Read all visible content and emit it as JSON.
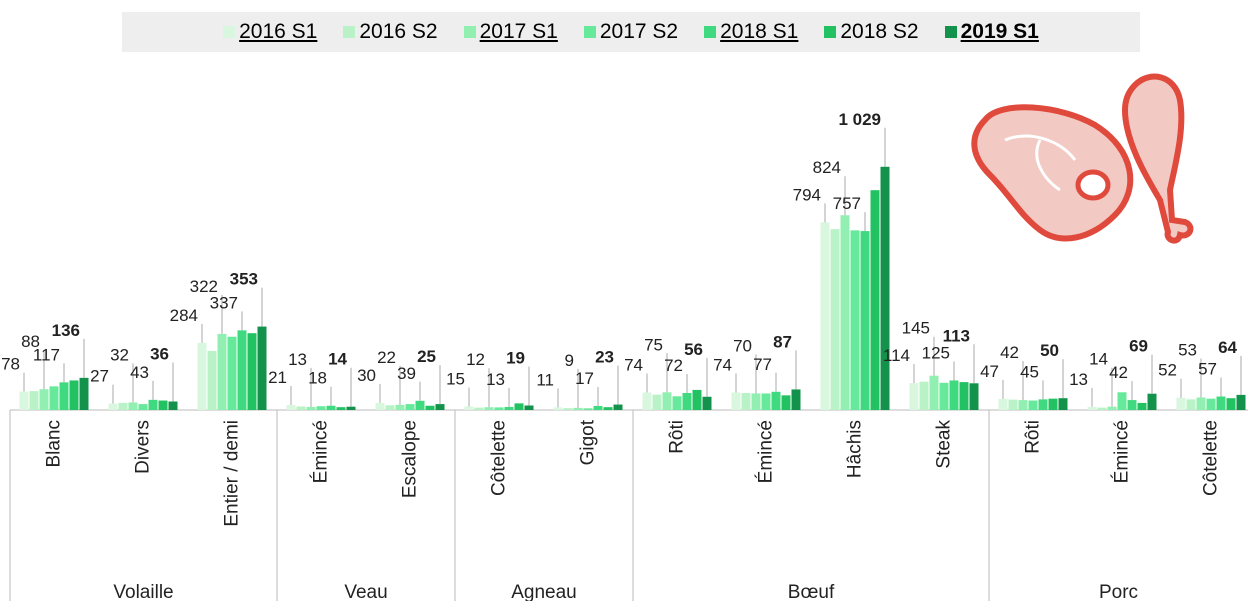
{
  "chart_data": {
    "type": "bar",
    "groups": [
      {
        "name": "Volaille",
        "categories": [
          "Blanc",
          "Divers",
          "Entier / demi"
        ]
      },
      {
        "name": "Veau",
        "categories": [
          "Émincé",
          "Escalope"
        ]
      },
      {
        "name": "Agneau",
        "categories": [
          "Côtelette",
          "Gigot"
        ]
      },
      {
        "name": "Bœuf",
        "categories": [
          "Rôti",
          "Émincé",
          "Hâchis",
          "Steak"
        ]
      },
      {
        "name": "Porc",
        "categories": [
          "Rôti",
          "Émincé",
          "Côtelette"
        ]
      }
    ],
    "series": [
      {
        "name": "2016 S1",
        "color": "#d9f7de",
        "values": [
          78,
          27,
          284,
          21,
          30,
          15,
          11,
          74,
          74,
          794,
          114,
          47,
          13,
          52
        ]
      },
      {
        "name": "2016 S2",
        "color": "#b8f2c6",
        "values": [
          80,
          30,
          250,
          15,
          20,
          10,
          8,
          65,
          72,
          765,
          120,
          44,
          10,
          45
        ]
      },
      {
        "name": "2017 S1",
        "color": "#92efb2",
        "values": [
          88,
          32,
          322,
          13,
          22,
          12,
          9,
          75,
          70,
          824,
          145,
          42,
          14,
          53
        ]
      },
      {
        "name": "2017 S2",
        "color": "#66e99a",
        "values": [
          100,
          25,
          310,
          16,
          25,
          11,
          7,
          58,
          70,
          760,
          115,
          40,
          75,
          48
        ]
      },
      {
        "name": "2018 S1",
        "color": "#3fd97f",
        "values": [
          117,
          43,
          337,
          18,
          39,
          13,
          17,
          72,
          77,
          757,
          125,
          45,
          42,
          57
        ]
      },
      {
        "name": "2018 S2",
        "color": "#22c263",
        "values": [
          125,
          40,
          325,
          12,
          18,
          28,
          12,
          85,
          62,
          930,
          118,
          48,
          30,
          50
        ]
      },
      {
        "name": "2019 S1",
        "color": "#12924a",
        "values": [
          136,
          36,
          353,
          14,
          25,
          19,
          23,
          56,
          87,
          1029,
          113,
          50,
          69,
          64
        ],
        "value_labels": [
          "136",
          "36",
          "353",
          "14",
          "25",
          "19",
          "23",
          "56",
          "87",
          "1 029",
          "113",
          "50",
          "69",
          "64"
        ]
      }
    ],
    "labeled_series": [
      0,
      2,
      4,
      6
    ],
    "ylim": [
      0,
      1100
    ]
  }
}
